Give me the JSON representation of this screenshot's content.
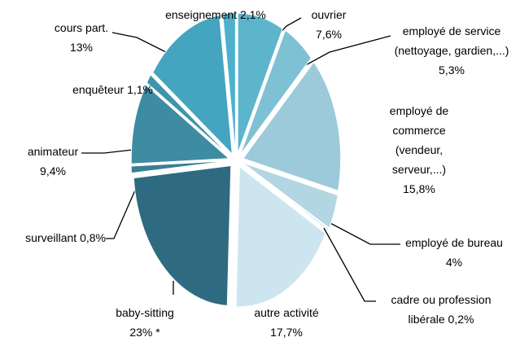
{
  "chart_data": {
    "type": "pie",
    "categories": [
      "ouvrier",
      "employé de service (nettoyage, gardien,...)",
      "employé de commerce (vendeur, serveur,...)",
      "employé de bureau",
      "cadre ou profession libérale",
      "autre activité",
      "baby-sitting",
      "surveillant",
      "animateur",
      "enquêteur",
      "cours part.",
      "enseignement"
    ],
    "values": [
      7.6,
      5.3,
      15.8,
      4,
      0.2,
      17.7,
      23,
      0.8,
      9.4,
      1.1,
      13,
      2.1
    ],
    "value_labels": [
      "7,6%",
      "5,3%",
      "15,8%",
      "4%",
      "0,2%",
      "17,7%",
      "23% *",
      "0,8%",
      "9,4%",
      "1,1%",
      "13%",
      "2,1%"
    ],
    "colors": [
      "#5db5cc",
      "#7fc1d4",
      "#9ccadb",
      "#b2d6e2",
      "#c3dfe9",
      "#cde5ee",
      "#2f6b80",
      "#3b7f94",
      "#3e8ca2",
      "#3d95ad",
      "#45a4bf",
      "#4fb0cb"
    ]
  }
}
